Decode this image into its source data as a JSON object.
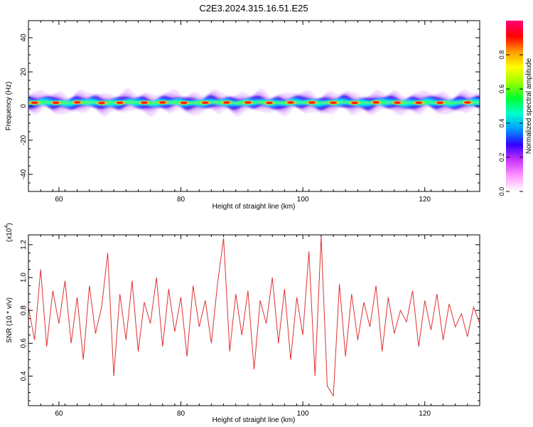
{
  "title": "C2E3.2024.315.16.51.E25",
  "chart_data": [
    {
      "type": "heatmap",
      "xlabel": "Height of straight line (km)",
      "ylabel": "Frequency (Hz)",
      "xlim": [
        55,
        129
      ],
      "ylim": [
        -50,
        50
      ],
      "x_ticks": [
        60,
        80,
        100,
        120
      ],
      "y_ticks": [
        -40,
        -20,
        0,
        20,
        40
      ],
      "grid": false,
      "band": {
        "center_hz": 2,
        "halfwidth_hz": 4,
        "peak_heights_km": [
          56,
          59.5,
          63,
          67,
          70,
          74,
          77,
          80.5,
          84,
          87.5,
          91,
          94.5,
          98,
          101.5,
          105,
          108.5,
          112,
          115.5,
          119,
          122.5,
          127
        ]
      },
      "colorbar": {
        "label": "Normalized spectral amplitude",
        "range": [
          0,
          1
        ],
        "ticks": [
          0.0,
          0.2,
          0.4,
          0.6,
          0.8
        ],
        "colors": [
          "#ffffff",
          "#ff99ff",
          "#cc33ff",
          "#3300ff",
          "#0099ff",
          "#00ffcc",
          "#00ff33",
          "#99ff00",
          "#ffff00",
          "#ff9900",
          "#ff0000",
          "#ff0077"
        ]
      }
    },
    {
      "type": "line",
      "xlabel": "Height of straight line (km)",
      "ylabel": "SNR (10 * v/v)",
      "y_scale_label": "(x10",
      "y_scale_exp": "4",
      "y_scale_close": ")",
      "xlim": [
        55,
        129
      ],
      "ylim": [
        0.22,
        1.26
      ],
      "x_ticks": [
        60,
        80,
        100,
        120
      ],
      "y_ticks": [
        0.4,
        0.6,
        0.8,
        1.0,
        1.2
      ],
      "grid": false,
      "series": [
        {
          "color": "#e03030",
          "x": [
            55,
            56,
            57,
            58,
            59,
            60,
            61,
            62,
            63,
            64,
            65,
            66,
            67,
            68,
            69,
            70,
            71,
            72,
            73,
            74,
            75,
            76,
            77,
            78,
            79,
            80,
            81,
            82,
            83,
            84,
            85,
            86,
            87,
            88,
            89,
            90,
            91,
            92,
            93,
            94,
            95,
            96,
            97,
            98,
            99,
            100,
            101,
            102,
            103,
            104,
            105,
            106,
            107,
            108,
            109,
            110,
            111,
            112,
            113,
            114,
            115,
            116,
            117,
            118,
            119,
            120,
            121,
            122,
            123,
            124,
            125,
            126,
            127,
            128,
            129
          ],
          "y": [
            0.82,
            0.62,
            1.05,
            0.58,
            0.92,
            0.72,
            0.98,
            0.6,
            0.88,
            0.5,
            0.95,
            0.66,
            0.82,
            1.15,
            0.4,
            0.9,
            0.62,
            0.98,
            0.55,
            0.85,
            0.72,
            1.0,
            0.58,
            0.93,
            0.67,
            0.88,
            0.52,
            0.95,
            0.7,
            0.86,
            0.6,
            0.96,
            1.24,
            0.55,
            0.9,
            0.65,
            0.92,
            0.44,
            0.86,
            0.72,
            1.0,
            0.6,
            0.93,
            0.5,
            0.88,
            0.65,
            1.16,
            0.4,
            1.25,
            0.34,
            0.28,
            0.96,
            0.52,
            0.9,
            0.62,
            0.85,
            0.7,
            0.95,
            0.55,
            0.88,
            0.66,
            0.8,
            0.73,
            0.92,
            0.58,
            0.86,
            0.68,
            0.9,
            0.62,
            0.84,
            0.7,
            0.78,
            0.64,
            0.82,
            0.72
          ]
        }
      ]
    }
  ]
}
